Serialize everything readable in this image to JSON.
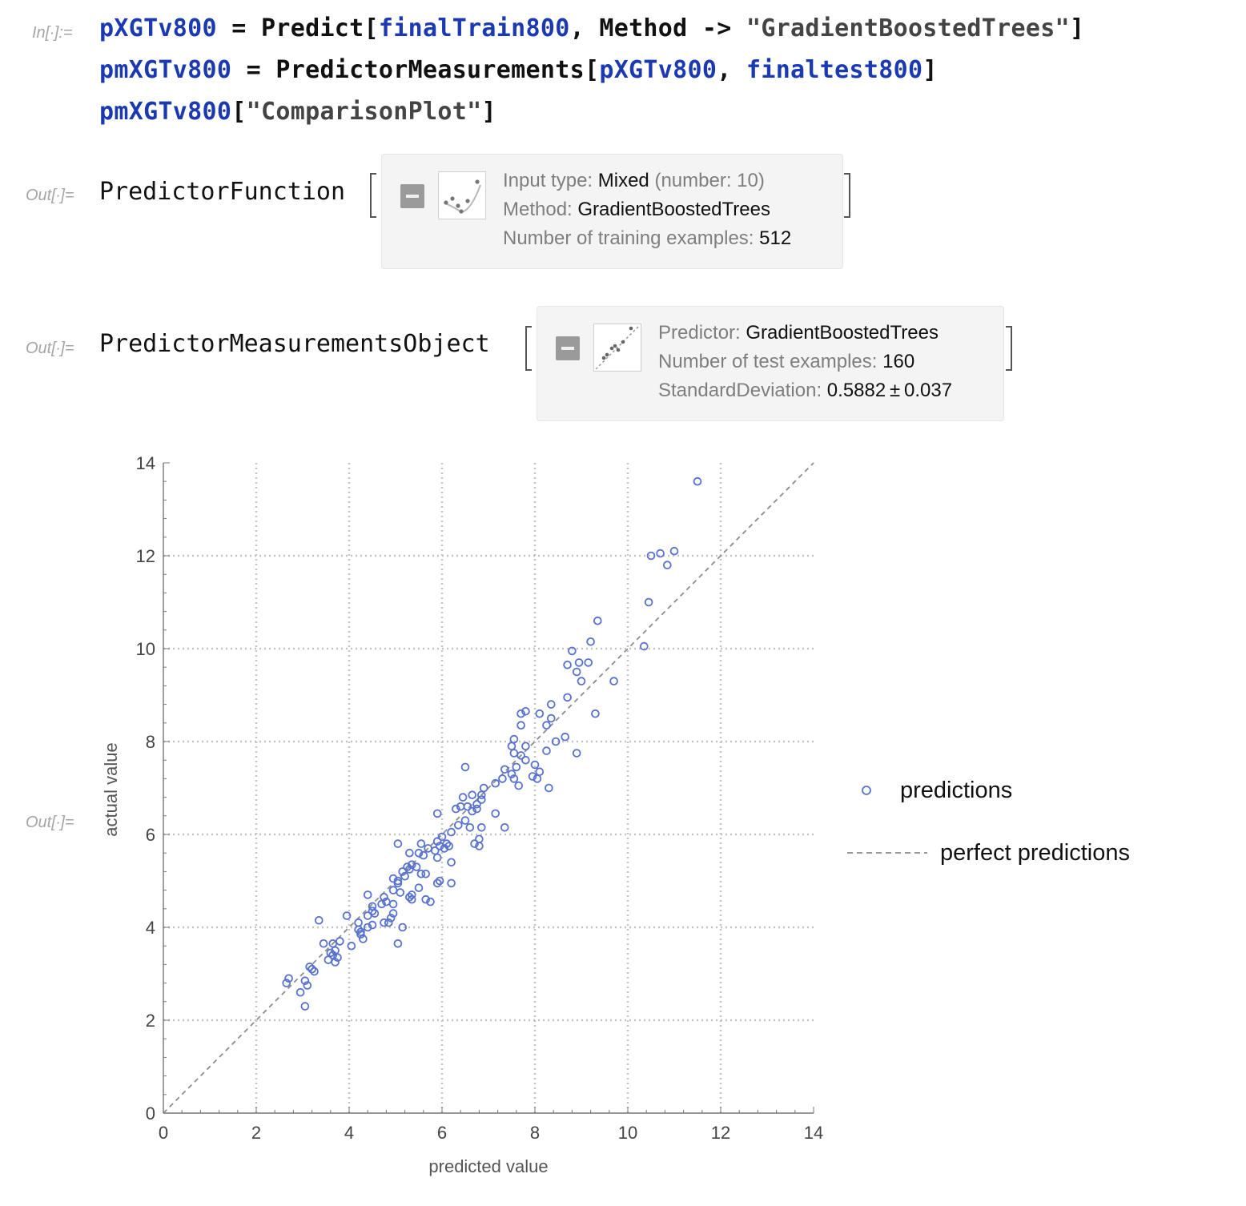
{
  "input_cell": {
    "label": "In[∙]:=",
    "lines": [
      {
        "sym1": "pXGTv800",
        "eq": " = ",
        "fn": "Predict",
        "open": "[",
        "arg1": "finalTrain800",
        "comma": ", ",
        "opt": "Method",
        "arrow": " -> ",
        "str": "\"GradientBoostedTrees\"",
        "close": "]"
      },
      {
        "sym1": "pmXGTv800",
        "eq": " = ",
        "fn": "PredictorMeasurements",
        "open": "[",
        "arg1": "pXGTv800",
        "comma": ", ",
        "arg2": "finaltest800",
        "close": "]"
      },
      {
        "sym1": "pmXGTv800",
        "open": "[",
        "str": "\"ComparisonPlot\"",
        "close": "]"
      }
    ]
  },
  "out1": {
    "label": "Out[∙]=",
    "head": "PredictorFunction",
    "info": [
      {
        "key": "Input type: ",
        "val": "Mixed",
        "extra": " (number: 10)"
      },
      {
        "key": "Method: ",
        "val": "GradientBoostedTrees"
      },
      {
        "key": "Number of training examples: ",
        "val": "512"
      }
    ]
  },
  "out2": {
    "label": "Out[∙]=",
    "head": "PredictorMeasurementsObject",
    "info": [
      {
        "key": "Predictor: ",
        "val": "GradientBoostedTrees"
      },
      {
        "key": "Number of test examples: ",
        "val": "160"
      },
      {
        "key": "StandardDeviation: ",
        "val": "0.5882 ± 0.037"
      }
    ]
  },
  "out3": {
    "label": "Out[∙]="
  },
  "colors": {
    "symbol": "#1b3ab2",
    "points": "#5873cf",
    "diagonal": "#8c8c8c",
    "grid": "#c4c4c4"
  },
  "chart_data": {
    "type": "scatter",
    "title": "",
    "xlabel": "predicted value",
    "ylabel": "actual value",
    "xlim": [
      0,
      14
    ],
    "ylim": [
      0,
      14
    ],
    "xticks": [
      0,
      2,
      4,
      6,
      8,
      10,
      12,
      14
    ],
    "yticks": [
      0,
      2,
      4,
      6,
      8,
      10,
      12,
      14
    ],
    "grid": true,
    "legend_position": "right",
    "legend": [
      {
        "name": "predictions",
        "marker": "open-circle"
      },
      {
        "name": "perfect predictions",
        "marker": "dashed-line"
      }
    ],
    "series": [
      {
        "name": "predictions",
        "points": [
          [
            11.5,
            13.6
          ],
          [
            10.5,
            12.0
          ],
          [
            10.7,
            12.05
          ],
          [
            11.0,
            12.1
          ],
          [
            10.85,
            11.8
          ],
          [
            10.45,
            11.0
          ],
          [
            9.35,
            10.6
          ],
          [
            9.2,
            10.15
          ],
          [
            10.35,
            10.05
          ],
          [
            8.8,
            9.95
          ],
          [
            8.7,
            9.65
          ],
          [
            8.95,
            9.7
          ],
          [
            9.15,
            9.7
          ],
          [
            8.9,
            9.5
          ],
          [
            9.0,
            9.3
          ],
          [
            9.7,
            9.3
          ],
          [
            8.7,
            8.95
          ],
          [
            8.35,
            8.8
          ],
          [
            7.8,
            8.65
          ],
          [
            7.7,
            8.6
          ],
          [
            8.1,
            8.6
          ],
          [
            9.3,
            8.6
          ],
          [
            8.35,
            8.5
          ],
          [
            8.25,
            8.35
          ],
          [
            7.7,
            8.35
          ],
          [
            8.65,
            8.1
          ],
          [
            8.45,
            8.0
          ],
          [
            7.55,
            8.05
          ],
          [
            7.8,
            7.9
          ],
          [
            7.5,
            7.9
          ],
          [
            8.25,
            7.8
          ],
          [
            7.55,
            7.75
          ],
          [
            7.7,
            7.7
          ],
          [
            8.9,
            7.75
          ],
          [
            7.8,
            7.6
          ],
          [
            8.0,
            7.5
          ],
          [
            7.6,
            7.45
          ],
          [
            6.5,
            7.45
          ],
          [
            8.1,
            7.35
          ],
          [
            7.35,
            7.4
          ],
          [
            7.5,
            7.3
          ],
          [
            7.55,
            7.2
          ],
          [
            7.95,
            7.25
          ],
          [
            7.3,
            7.2
          ],
          [
            7.15,
            7.1
          ],
          [
            6.9,
            7.0
          ],
          [
            7.65,
            7.05
          ],
          [
            8.05,
            7.2
          ],
          [
            8.3,
            7.0
          ],
          [
            6.85,
            6.85
          ],
          [
            6.45,
            6.8
          ],
          [
            6.65,
            6.85
          ],
          [
            6.75,
            6.65
          ],
          [
            6.85,
            6.75
          ],
          [
            6.4,
            6.6
          ],
          [
            6.3,
            6.55
          ],
          [
            6.75,
            6.55
          ],
          [
            6.55,
            6.6
          ],
          [
            6.65,
            6.5
          ],
          [
            7.15,
            6.45
          ],
          [
            5.9,
            6.45
          ],
          [
            6.5,
            6.3
          ],
          [
            6.35,
            6.2
          ],
          [
            6.6,
            6.15
          ],
          [
            6.85,
            6.15
          ],
          [
            7.35,
            6.15
          ],
          [
            6.2,
            6.05
          ],
          [
            6.0,
            5.95
          ],
          [
            5.9,
            5.85
          ],
          [
            6.8,
            5.9
          ],
          [
            6.7,
            5.8
          ],
          [
            6.8,
            5.75
          ],
          [
            5.05,
            5.8
          ],
          [
            5.55,
            5.8
          ],
          [
            6.1,
            5.8
          ],
          [
            5.7,
            5.7
          ],
          [
            5.95,
            5.75
          ],
          [
            6.15,
            5.75
          ],
          [
            6.05,
            5.7
          ],
          [
            5.85,
            5.65
          ],
          [
            5.3,
            5.6
          ],
          [
            5.5,
            5.6
          ],
          [
            5.6,
            5.55
          ],
          [
            5.9,
            5.5
          ],
          [
            6.2,
            5.4
          ],
          [
            5.35,
            5.35
          ],
          [
            5.25,
            5.3
          ],
          [
            5.45,
            5.3
          ],
          [
            5.3,
            5.25
          ],
          [
            5.15,
            5.2
          ],
          [
            5.55,
            5.15
          ],
          [
            5.65,
            5.15
          ],
          [
            5.2,
            5.1
          ],
          [
            4.95,
            5.05
          ],
          [
            5.05,
            5.0
          ],
          [
            5.95,
            5.0
          ],
          [
            5.05,
            4.95
          ],
          [
            5.9,
            4.95
          ],
          [
            6.2,
            4.95
          ],
          [
            4.95,
            4.8
          ],
          [
            5.5,
            4.85
          ],
          [
            5.1,
            4.75
          ],
          [
            5.35,
            4.7
          ],
          [
            4.4,
            4.7
          ],
          [
            5.3,
            4.65
          ],
          [
            4.75,
            4.65
          ],
          [
            5.35,
            4.6
          ],
          [
            5.65,
            4.6
          ],
          [
            5.75,
            4.55
          ],
          [
            4.8,
            4.55
          ],
          [
            4.95,
            4.5
          ],
          [
            4.5,
            4.45
          ],
          [
            4.7,
            4.5
          ],
          [
            4.5,
            4.35
          ],
          [
            4.55,
            4.3
          ],
          [
            4.95,
            4.3
          ],
          [
            4.4,
            4.25
          ],
          [
            4.9,
            4.2
          ],
          [
            3.35,
            4.15
          ],
          [
            4.75,
            4.1
          ],
          [
            4.5,
            4.05
          ],
          [
            4.85,
            4.1
          ],
          [
            4.2,
            4.1
          ],
          [
            3.95,
            4.25
          ],
          [
            4.4,
            4.0
          ],
          [
            4.2,
            3.95
          ],
          [
            5.15,
            4.0
          ],
          [
            4.25,
            3.9
          ],
          [
            4.25,
            3.85
          ],
          [
            4.3,
            3.75
          ],
          [
            3.8,
            3.7
          ],
          [
            3.65,
            3.65
          ],
          [
            3.45,
            3.65
          ],
          [
            4.05,
            3.6
          ],
          [
            5.05,
            3.65
          ],
          [
            3.7,
            3.5
          ],
          [
            3.6,
            3.45
          ],
          [
            3.75,
            3.35
          ],
          [
            3.55,
            3.3
          ],
          [
            3.7,
            3.25
          ],
          [
            3.15,
            3.15
          ],
          [
            3.2,
            3.1
          ],
          [
            3.25,
            3.05
          ],
          [
            2.7,
            2.9
          ],
          [
            3.05,
            2.85
          ],
          [
            2.65,
            2.8
          ],
          [
            3.1,
            2.75
          ],
          [
            2.95,
            2.6
          ],
          [
            3.05,
            2.3
          ],
          [
            3.65,
            3.4
          ]
        ]
      },
      {
        "name": "perfect predictions",
        "line": [
          [
            0,
            0
          ],
          [
            14,
            14
          ]
        ]
      }
    ]
  }
}
